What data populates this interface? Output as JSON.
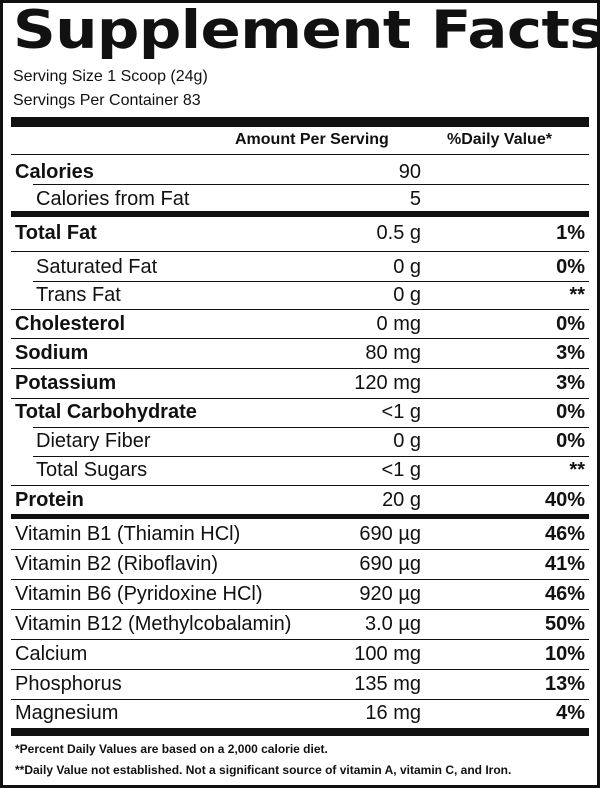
{
  "label": {
    "title": "Supplement Facts",
    "serving_size": "Serving Size 1 Scoop (24g)",
    "servings_per_container": "Servings Per Container 83",
    "amount_header": "Amount Per Serving",
    "dv_header": "%Daily Value*",
    "rows": [
      {
        "name": "Calories",
        "amount": "90",
        "dv": ""
      },
      {
        "name": "Calories from Fat",
        "amount": "5",
        "dv": ""
      },
      {
        "name": "Total Fat",
        "amount": "0.5 g",
        "dv": "1%"
      },
      {
        "name": "Saturated Fat",
        "amount": "0 g",
        "dv": "0%"
      },
      {
        "name": "Trans Fat",
        "amount": "0 g",
        "dv": "**"
      },
      {
        "name": "Cholesterol",
        "amount": "0 mg",
        "dv": "0%"
      },
      {
        "name": "Sodium",
        "amount": "80 mg",
        "dv": "3%"
      },
      {
        "name": "Potassium",
        "amount": "120 mg",
        "dv": "3%"
      },
      {
        "name": "Total Carbohydrate",
        "amount": "<1 g",
        "dv": "0%"
      },
      {
        "name": "Dietary Fiber",
        "amount": "0 g",
        "dv": "0%"
      },
      {
        "name": "Total Sugars",
        "amount": "<1 g",
        "dv": "**"
      },
      {
        "name": "Protein",
        "amount": "20 g",
        "dv": "40%"
      },
      {
        "name": "Vitamin B1 (Thiamin HCl)",
        "amount": "690 µg",
        "dv": "46%"
      },
      {
        "name": "Vitamin B2 (Riboflavin)",
        "amount": "690 µg",
        "dv": "41%"
      },
      {
        "name": "Vitamin B6 (Pyridoxine HCl)",
        "amount": "920 µg",
        "dv": "46%"
      },
      {
        "name": "Vitamin B12 (Methylcobalamin)",
        "amount": "3.0 µg",
        "dv": "50%"
      },
      {
        "name": "Calcium",
        "amount": "100 mg",
        "dv": "10%"
      },
      {
        "name": "Phosphorus",
        "amount": "135 mg",
        "dv": "13%"
      },
      {
        "name": "Magnesium",
        "amount": "16 mg",
        "dv": "4%"
      }
    ],
    "footnote_1": "*Percent Daily Values are based on a 2,000 calorie diet.",
    "footnote_2": "**Daily Value not established.  Not a significant source of vitamin A, vitamin C, and Iron."
  }
}
